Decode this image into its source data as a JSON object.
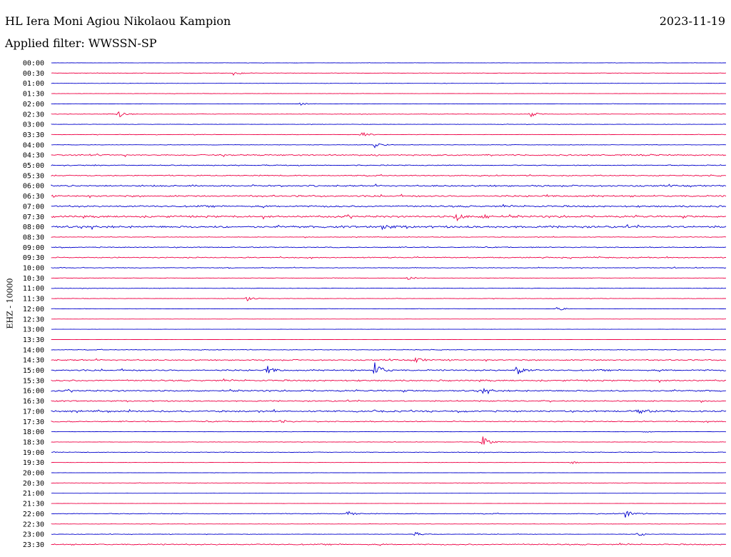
{
  "header": {
    "title": "HL Iera Moni Agiou Nikolaou Kampion",
    "date": "2023-11-19",
    "filter": "Applied filter: WWSSN-SP"
  },
  "chart_data": {
    "type": "line",
    "title": "HL Iera Moni Agiou Nikolaou Kampion",
    "ylabel": "EHZ - 10000",
    "xlabel": "",
    "grid": false,
    "colors": {
      "even": "#0000cc",
      "odd": "#ee0044"
    },
    "rows": [
      {
        "label": "00:00",
        "level": 0.2,
        "events": []
      },
      {
        "label": "00:30",
        "level": 0.25,
        "events": [
          {
            "x": 0.27,
            "amp": 3
          }
        ]
      },
      {
        "label": "01:00",
        "level": 0.2,
        "events": []
      },
      {
        "label": "01:30",
        "level": 0.2,
        "events": []
      },
      {
        "label": "02:00",
        "level": 0.2,
        "events": [
          {
            "x": 0.37,
            "amp": 2
          }
        ]
      },
      {
        "label": "02:30",
        "level": 0.3,
        "events": [
          {
            "x": 0.1,
            "amp": 6
          },
          {
            "x": 0.71,
            "amp": 4
          }
        ]
      },
      {
        "label": "03:00",
        "level": 0.25,
        "events": []
      },
      {
        "label": "03:30",
        "level": 0.3,
        "events": [
          {
            "x": 0.46,
            "amp": 4
          }
        ]
      },
      {
        "label": "04:00",
        "level": 0.3,
        "events": [
          {
            "x": 0.48,
            "amp": 5
          }
        ]
      },
      {
        "label": "04:30",
        "level": 0.9,
        "events": []
      },
      {
        "label": "05:00",
        "level": 0.6,
        "events": []
      },
      {
        "label": "05:30",
        "level": 0.7,
        "events": []
      },
      {
        "label": "06:00",
        "level": 1.0,
        "events": []
      },
      {
        "label": "06:30",
        "level": 1.1,
        "events": []
      },
      {
        "label": "07:00",
        "level": 1.1,
        "events": []
      },
      {
        "label": "07:30",
        "level": 1.3,
        "events": [
          {
            "x": 0.6,
            "amp": 6
          },
          {
            "x": 0.64,
            "amp": 4
          }
        ]
      },
      {
        "label": "08:00",
        "level": 1.4,
        "events": [
          {
            "x": 0.49,
            "amp": 5
          }
        ]
      },
      {
        "label": "08:30",
        "level": 0.4,
        "events": []
      },
      {
        "label": "09:00",
        "level": 0.6,
        "events": []
      },
      {
        "label": "09:30",
        "level": 0.7,
        "events": []
      },
      {
        "label": "10:00",
        "level": 0.5,
        "events": []
      },
      {
        "label": "10:30",
        "level": 0.3,
        "events": [
          {
            "x": 0.53,
            "amp": 3
          }
        ]
      },
      {
        "label": "11:00",
        "level": 0.3,
        "events": []
      },
      {
        "label": "11:30",
        "level": 0.3,
        "events": [
          {
            "x": 0.29,
            "amp": 3
          }
        ]
      },
      {
        "label": "12:00",
        "level": 0.25,
        "events": [
          {
            "x": 0.75,
            "amp": 3
          }
        ]
      },
      {
        "label": "12:30",
        "level": 0.1,
        "events": []
      },
      {
        "label": "13:00",
        "level": 0.1,
        "events": []
      },
      {
        "label": "13:30",
        "level": 0.1,
        "events": []
      },
      {
        "label": "14:00",
        "level": 0.4,
        "events": []
      },
      {
        "label": "14:30",
        "level": 0.8,
        "events": [
          {
            "x": 0.54,
            "amp": 4
          }
        ]
      },
      {
        "label": "15:00",
        "level": 1.0,
        "events": [
          {
            "x": 0.48,
            "amp": 12
          },
          {
            "x": 0.69,
            "amp": 8
          },
          {
            "x": 0.32,
            "amp": 5
          }
        ]
      },
      {
        "label": "15:30",
        "level": 1.0,
        "events": []
      },
      {
        "label": "16:00",
        "level": 1.0,
        "events": [
          {
            "x": 0.64,
            "amp": 4
          }
        ]
      },
      {
        "label": "16:30",
        "level": 0.8,
        "events": []
      },
      {
        "label": "17:00",
        "level": 1.1,
        "events": [
          {
            "x": 0.87,
            "amp": 4
          }
        ]
      },
      {
        "label": "17:30",
        "level": 0.7,
        "events": [
          {
            "x": 0.34,
            "amp": 3
          }
        ]
      },
      {
        "label": "18:00",
        "level": 0.15,
        "events": [
          {
            "x": 0.88,
            "amp": 2
          }
        ]
      },
      {
        "label": "18:30",
        "level": 0.3,
        "events": [
          {
            "x": 0.64,
            "amp": 9
          }
        ]
      },
      {
        "label": "19:00",
        "level": 0.4,
        "events": []
      },
      {
        "label": "19:30",
        "level": 0.2,
        "events": [
          {
            "x": 0.77,
            "amp": 2
          }
        ]
      },
      {
        "label": "20:00",
        "level": 0.15,
        "events": []
      },
      {
        "label": "20:30",
        "level": 0.3,
        "events": []
      },
      {
        "label": "21:00",
        "level": 0.1,
        "events": []
      },
      {
        "label": "21:30",
        "level": 0.15,
        "events": []
      },
      {
        "label": "22:00",
        "level": 0.5,
        "events": [
          {
            "x": 0.44,
            "amp": 4
          },
          {
            "x": 0.85,
            "amp": 7
          }
        ]
      },
      {
        "label": "22:30",
        "level": 0.2,
        "events": []
      },
      {
        "label": "23:00",
        "level": 0.3,
        "events": [
          {
            "x": 0.54,
            "amp": 3
          },
          {
            "x": 0.87,
            "amp": 3
          }
        ]
      },
      {
        "label": "23:30",
        "level": 0.8,
        "events": []
      }
    ]
  }
}
